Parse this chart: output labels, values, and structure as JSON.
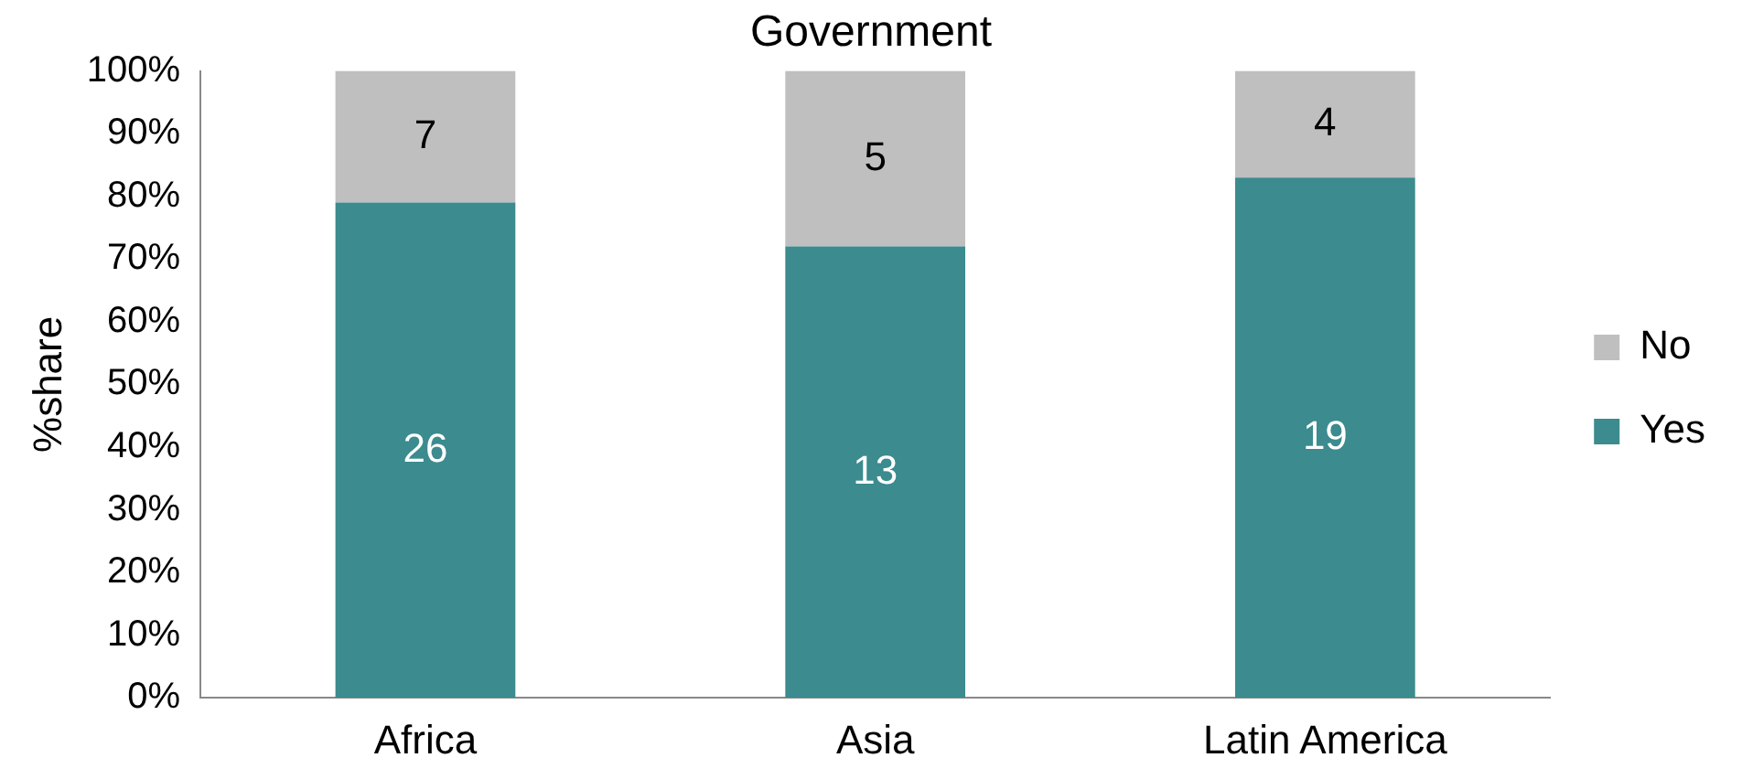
{
  "chart_data": {
    "type": "bar",
    "title": "Government",
    "ylabel": "%share",
    "stacked": true,
    "categories": [
      "Africa",
      "Asia",
      "Latin America"
    ],
    "series": [
      {
        "name": "Yes",
        "color": "#3b8b8f",
        "values": [
          79,
          72,
          83
        ]
      },
      {
        "name": "No",
        "color": "#bfbfbf",
        "values": [
          21,
          28,
          17
        ]
      }
    ],
    "annotations": [
      "26",
      "13",
      "19",
      "7",
      "5",
      "4"
    ],
    "ylim": [
      0,
      100
    ],
    "yticks": [
      {
        "value": 0,
        "label": "0%"
      },
      {
        "value": 10,
        "label": "10%"
      },
      {
        "value": 20,
        "label": "20%"
      },
      {
        "value": 30,
        "label": "30%"
      },
      {
        "value": 40,
        "label": "40%"
      },
      {
        "value": 50,
        "label": "50%"
      },
      {
        "value": 60,
        "label": "60%"
      },
      {
        "value": 70,
        "label": "70%"
      },
      {
        "value": 80,
        "label": "80%"
      },
      {
        "value": 90,
        "label": "90%"
      },
      {
        "value": 100,
        "label": "100%"
      }
    ],
    "grid": false,
    "legend": "right"
  }
}
